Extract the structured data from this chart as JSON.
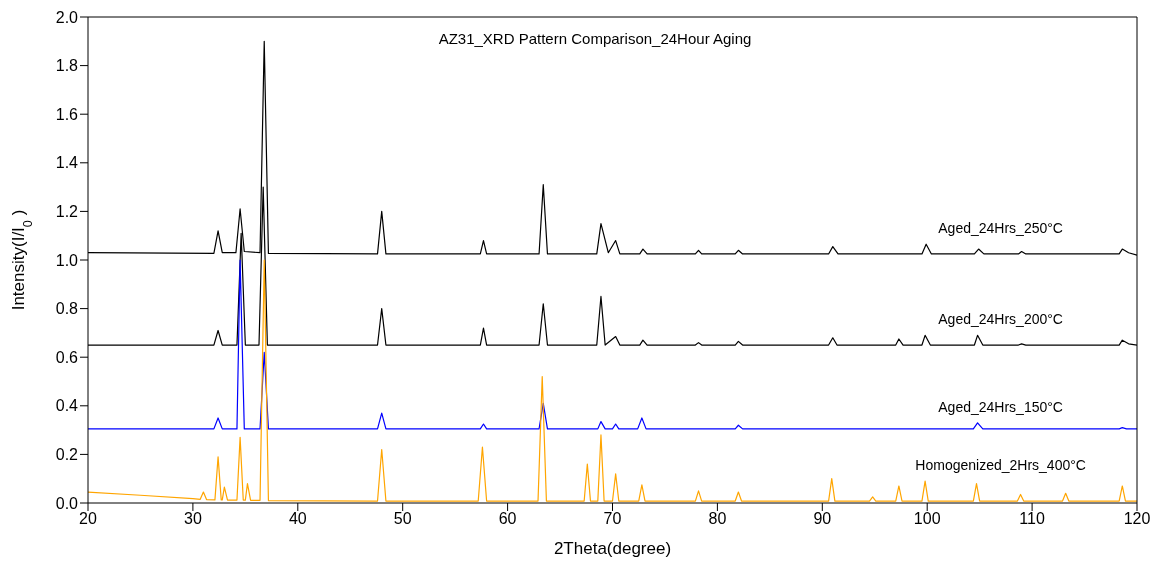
{
  "chart_data": {
    "type": "line",
    "title": "AZ31_XRD Pattern Comparison_24Hour Aging",
    "xlabel": "2Theta(degree)",
    "ylabel": "Intensity(I/I$_{0}$)",
    "xlim": [
      20,
      120
    ],
    "xticks": [
      20,
      30,
      40,
      50,
      60,
      70,
      80,
      90,
      100,
      110,
      120
    ],
    "ylim": [
      0,
      2.0
    ],
    "yticks": [
      {
        "value": 0,
        "label": "0.0"
      },
      0.2,
      0.4,
      0.6,
      0.8,
      {
        "value": 1,
        "label": "1.0"
      },
      1.2,
      1.4,
      1.6,
      1.8,
      {
        "value": 2,
        "label": "2.0"
      }
    ],
    "grid": false,
    "marker": "none",
    "line_style": "solid",
    "series": [
      {
        "name": "Aged_24Hrs_250°C",
        "color": "#000000",
        "x": [
          20,
          32.0,
          32.4,
          32.8,
          34.1,
          34.5,
          34.9,
          36.4,
          36.8,
          37.2,
          47.6,
          48.0,
          48.4,
          57.4,
          57.7,
          58.0,
          63.0,
          63.4,
          63.8,
          68.5,
          68.9,
          69.6,
          70.3,
          70.7,
          72.6,
          72.9,
          73.3,
          77.9,
          78.2,
          78.5,
          81.7,
          82.0,
          82.4,
          90.6,
          91.0,
          91.5,
          99.5,
          99.9,
          100.4,
          104.5,
          104.9,
          105.4,
          108.7,
          109.0,
          109.4,
          118.3,
          118.6,
          119.2,
          120
        ],
        "values": [
          1.03,
          1.027,
          1.12,
          1.03,
          1.03,
          1.21,
          1.035,
          1.03,
          1.9,
          1.027,
          1.025,
          1.2,
          1.025,
          1.025,
          1.08,
          1.025,
          1.025,
          1.31,
          1.025,
          1.025,
          1.15,
          1.03,
          1.08,
          1.025,
          1.025,
          1.045,
          1.025,
          1.025,
          1.04,
          1.025,
          1.025,
          1.04,
          1.025,
          1.025,
          1.055,
          1.025,
          1.025,
          1.065,
          1.025,
          1.025,
          1.045,
          1.025,
          1.025,
          1.035,
          1.025,
          1.025,
          1.045,
          1.03,
          1.02
        ]
      },
      {
        "name": "Aged_24Hrs_200°C",
        "color": "#000000",
        "x": [
          20,
          32.0,
          32.4,
          32.8,
          34.2,
          34.6,
          35.0,
          36.3,
          36.7,
          37.1,
          47.6,
          48.0,
          48.4,
          57.4,
          57.7,
          58.0,
          63.0,
          63.4,
          63.8,
          68.5,
          68.9,
          69.3,
          70.3,
          70.7,
          72.6,
          72.9,
          73.3,
          77.9,
          78.2,
          78.5,
          81.7,
          82.0,
          82.4,
          90.6,
          91.0,
          91.4,
          97.0,
          97.3,
          97.7,
          99.5,
          99.8,
          100.3,
          104.5,
          104.8,
          105.3,
          108.7,
          109.0,
          109.4,
          118.3,
          118.6,
          119.2,
          120
        ],
        "values": [
          0.65,
          0.65,
          0.71,
          0.65,
          0.65,
          1.11,
          0.65,
          0.65,
          1.3,
          0.65,
          0.65,
          0.8,
          0.65,
          0.65,
          0.72,
          0.65,
          0.65,
          0.82,
          0.65,
          0.65,
          0.85,
          0.65,
          0.685,
          0.65,
          0.65,
          0.67,
          0.65,
          0.65,
          0.66,
          0.65,
          0.65,
          0.665,
          0.65,
          0.65,
          0.68,
          0.65,
          0.65,
          0.675,
          0.65,
          0.65,
          0.69,
          0.65,
          0.65,
          0.69,
          0.65,
          0.65,
          0.655,
          0.65,
          0.65,
          0.67,
          0.655,
          0.65
        ]
      },
      {
        "name": "Aged_24Hrs_150°C",
        "color": "#0000ff",
        "x": [
          20,
          32.0,
          32.4,
          32.8,
          34.2,
          34.5,
          34.9,
          36.4,
          36.8,
          37.2,
          47.6,
          48.0,
          48.4,
          57.4,
          57.7,
          58.0,
          63.0,
          63.4,
          63.8,
          68.6,
          68.9,
          69.3,
          70.0,
          70.3,
          70.6,
          72.4,
          72.8,
          73.2,
          81.7,
          82.0,
          82.4,
          104.4,
          104.8,
          105.3,
          118.3,
          118.6,
          119.0,
          120
        ],
        "values": [
          0.305,
          0.305,
          0.35,
          0.305,
          0.305,
          1.0,
          0.305,
          0.305,
          0.62,
          0.305,
          0.305,
          0.37,
          0.305,
          0.305,
          0.325,
          0.305,
          0.305,
          0.41,
          0.305,
          0.305,
          0.335,
          0.305,
          0.305,
          0.325,
          0.305,
          0.305,
          0.35,
          0.305,
          0.305,
          0.32,
          0.305,
          0.305,
          0.33,
          0.305,
          0.305,
          0.31,
          0.305,
          0.305
        ]
      },
      {
        "name": "Homogenized_2Hrs_400°C",
        "color": "#ffa500",
        "x": [
          20,
          25,
          30,
          30.7,
          31.0,
          31.3,
          32.1,
          32.4,
          32.7,
          32.8,
          33.0,
          33.3,
          34.2,
          34.5,
          34.8,
          35.0,
          35.2,
          35.5,
          36.4,
          36.8,
          37.2,
          47.6,
          48.0,
          48.4,
          57.2,
          57.6,
          58.0,
          62.9,
          63.3,
          63.7,
          67.3,
          67.6,
          67.9,
          68.6,
          68.9,
          69.2,
          70.0,
          70.3,
          70.6,
          72.5,
          72.8,
          73.1,
          77.9,
          78.2,
          78.5,
          81.7,
          82.0,
          82.3,
          90.6,
          90.9,
          91.2,
          94.5,
          94.8,
          95.1,
          97.0,
          97.3,
          97.6,
          99.5,
          99.8,
          100.1,
          104.4,
          104.7,
          105.0,
          108.6,
          108.9,
          109.2,
          112.9,
          113.2,
          113.5,
          118.3,
          118.6,
          118.9,
          120
        ],
        "values": [
          0.045,
          0.032,
          0.018,
          0.015,
          0.045,
          0.014,
          0.013,
          0.19,
          0.013,
          0.013,
          0.065,
          0.012,
          0.012,
          0.27,
          0.012,
          0.012,
          0.08,
          0.011,
          0.011,
          1.0,
          0.01,
          0.008,
          0.22,
          0.008,
          0.008,
          0.23,
          0.008,
          0.008,
          0.52,
          0.008,
          0.008,
          0.16,
          0.008,
          0.008,
          0.28,
          0.008,
          0.008,
          0.12,
          0.008,
          0.008,
          0.075,
          0.008,
          0.008,
          0.05,
          0.008,
          0.008,
          0.045,
          0.008,
          0.008,
          0.1,
          0.008,
          0.008,
          0.025,
          0.008,
          0.008,
          0.07,
          0.008,
          0.008,
          0.09,
          0.008,
          0.008,
          0.08,
          0.008,
          0.008,
          0.035,
          0.008,
          0.008,
          0.04,
          0.008,
          0.008,
          0.07,
          0.008,
          0.008
        ]
      }
    ]
  }
}
